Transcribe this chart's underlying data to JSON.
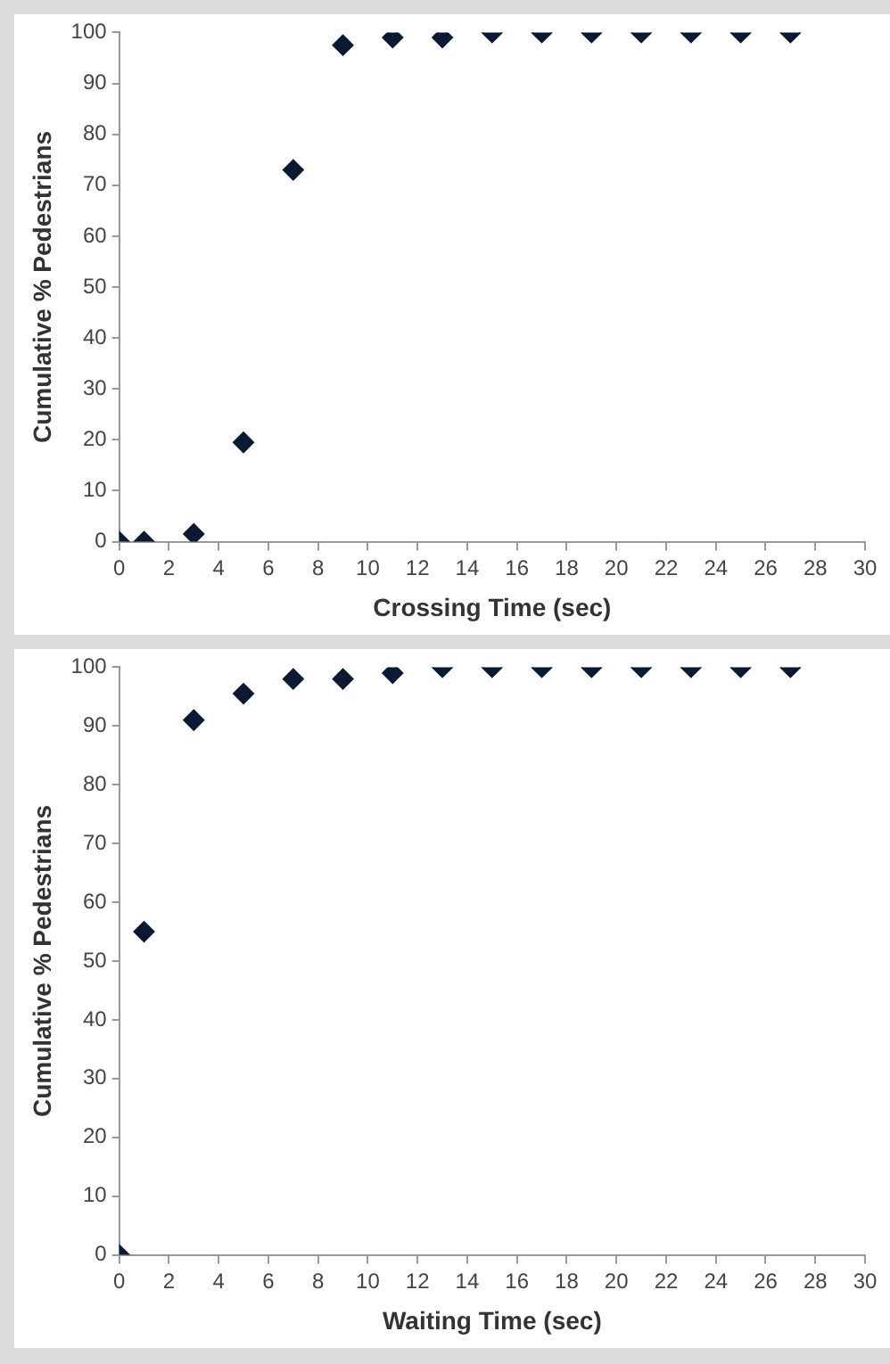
{
  "chart_data": [
    {
      "type": "scatter",
      "xlabel": "Crossing Time (sec)",
      "ylabel": "Cumulative % Pedestrians",
      "marker": "diamond",
      "grid": false,
      "legend": false,
      "x": [
        0,
        1,
        3,
        5,
        7,
        9,
        11,
        13,
        15,
        17,
        19,
        21,
        23,
        25,
        27
      ],
      "series": [
        {
          "color": "#0a1a33",
          "values": [
            0,
            0,
            1.5,
            19.5,
            73,
            97.5,
            99,
            99,
            100,
            100,
            100,
            100,
            100,
            100,
            100
          ]
        }
      ],
      "xlim": [
        0,
        30
      ],
      "xticks": [
        0,
        2,
        4,
        6,
        8,
        10,
        12,
        14,
        16,
        18,
        20,
        22,
        24,
        26,
        28,
        30
      ],
      "ylim": [
        0,
        100
      ],
      "yticks": [
        0,
        10,
        20,
        30,
        40,
        50,
        60,
        70,
        80,
        90,
        100
      ]
    },
    {
      "type": "scatter",
      "xlabel": "Waiting Time (sec)",
      "ylabel": "Cumulative % Pedestrians",
      "marker": "diamond",
      "grid": false,
      "legend": false,
      "x": [
        0,
        1,
        3,
        5,
        7,
        9,
        11,
        13,
        15,
        17,
        19,
        21,
        23,
        25,
        27
      ],
      "series": [
        {
          "color": "#0a1a33",
          "values": [
            0,
            55,
            91,
            95.5,
            98,
            98,
            99,
            100,
            100,
            100,
            100,
            100,
            100,
            100,
            100
          ]
        }
      ],
      "xlim": [
        0,
        30
      ],
      "xticks": [
        0,
        2,
        4,
        6,
        8,
        10,
        12,
        14,
        16,
        18,
        20,
        22,
        24,
        26,
        28,
        30
      ],
      "ylim": [
        0,
        100
      ],
      "yticks": [
        0,
        10,
        20,
        30,
        40,
        50,
        60,
        70,
        80,
        90,
        100
      ]
    }
  ]
}
